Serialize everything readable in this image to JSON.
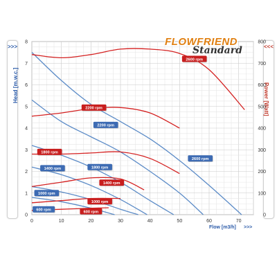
{
  "brand": {
    "name": "FLOWFRIEND",
    "edition": "Standard"
  },
  "left_tab": {
    "label": "Head [m.w.c.]",
    "arrows": ">>>"
  },
  "right_tab": {
    "label": "Power [Watt]",
    "arrows": "<<<"
  },
  "footer": {
    "label": "Flow [m3/h]",
    "arrows": ">>>"
  },
  "colors": {
    "head_curve": "#5b8bc7",
    "power_curve": "#d42020",
    "head_badge": "#3d6bb3",
    "power_badge": "#c81e1e",
    "grid_major": "#c9c9c9",
    "grid_minor": "#e6e6e6"
  },
  "chart_data": {
    "type": "line",
    "xlabel": "Flow [m3/h]",
    "ylabel": "Head [m.w.c.]",
    "y2label": "Power [Watt]",
    "xlim": [
      0,
      75
    ],
    "ylim": [
      0,
      8
    ],
    "y2lim": [
      0,
      800
    ],
    "xticks": [
      "0",
      "10",
      "20",
      "30",
      "40",
      "50",
      "60",
      "70"
    ],
    "yticks": [
      "0",
      "1",
      "2",
      "3",
      "4",
      "5",
      "6",
      "7",
      "8"
    ],
    "y2ticks": [
      "0",
      "100",
      "200",
      "300",
      "400",
      "500",
      "600",
      "700",
      "800"
    ],
    "grid": true,
    "head_series": [
      {
        "name": "600 rpm",
        "x": [
          0,
          10,
          20,
          28
        ],
        "y": [
          0.8,
          0.6,
          0.3,
          0
        ]
      },
      {
        "name": "1000 rpm",
        "x": [
          0,
          10,
          20,
          30,
          36
        ],
        "y": [
          1.3,
          1.05,
          0.7,
          0.25,
          0
        ]
      },
      {
        "name": "1400 rpm",
        "x": [
          0,
          10,
          20,
          30,
          39
        ],
        "y": [
          2.2,
          1.85,
          1.35,
          0.7,
          0
        ]
      },
      {
        "name": "1800 rpm",
        "x": [
          0,
          10,
          20,
          30,
          40,
          48
        ],
        "y": [
          3.2,
          2.75,
          2.2,
          1.5,
          0.65,
          0
        ]
      },
      {
        "name": "2200 rpm",
        "x": [
          0,
          10,
          20,
          30,
          40,
          50,
          58
        ],
        "y": [
          5.3,
          4.3,
          3.6,
          2.9,
          2.0,
          1.0,
          0
        ]
      },
      {
        "name": "2600 rpm",
        "x": [
          0,
          10,
          20,
          30,
          40,
          50,
          60,
          71
        ],
        "y": [
          7.5,
          6.2,
          5.1,
          4.3,
          3.5,
          2.5,
          1.35,
          0
        ]
      }
    ],
    "power_series": [
      {
        "name": "600 rpm",
        "x": [
          0,
          10,
          20,
          26
        ],
        "y": [
          20,
          25,
          30,
          32
        ]
      },
      {
        "name": "1000 rpm",
        "x": [
          0,
          10,
          20,
          30
        ],
        "y": [
          55,
          65,
          75,
          75
        ]
      },
      {
        "name": "1400 rpm",
        "x": [
          0,
          10,
          20,
          30,
          38
        ],
        "y": [
          130,
          150,
          170,
          165,
          115
        ]
      },
      {
        "name": "1800 rpm",
        "x": [
          0,
          10,
          20,
          30,
          40,
          50
        ],
        "y": [
          280,
          280,
          285,
          290,
          260,
          190
        ]
      },
      {
        "name": "2200 rpm",
        "x": [
          0,
          10,
          20,
          30,
          40,
          50
        ],
        "y": [
          455,
          470,
          490,
          495,
          470,
          400
        ]
      },
      {
        "name": "2600 rpm",
        "x": [
          0,
          10,
          20,
          30,
          40,
          50,
          60,
          72
        ],
        "y": [
          740,
          725,
          740,
          765,
          765,
          745,
          670,
          485
        ]
      }
    ],
    "head_labels": [
      {
        "text": "600 rpm",
        "x": 4,
        "y": 0.25
      },
      {
        "text": "1000 rpm",
        "x": 5,
        "y": 1.0
      },
      {
        "text": "1400 rpm",
        "x": 7,
        "y": 2.15
      },
      {
        "text": "1800 rpm",
        "x": 23,
        "y": 2.2
      },
      {
        "text": "2200 rpm",
        "x": 25,
        "y": 4.15
      },
      {
        "text": "2600 rpm",
        "x": 57,
        "y": 2.6
      }
    ],
    "power_labels": [
      {
        "text": "600 rpm",
        "x": 20,
        "y": 16
      },
      {
        "text": "1000 rpm",
        "x": 23,
        "y": 62
      },
      {
        "text": "1400 rpm",
        "x": 27,
        "y": 148
      },
      {
        "text": "1800 rpm",
        "x": 6,
        "y": 290
      },
      {
        "text": "2200 rpm",
        "x": 21,
        "y": 495
      },
      {
        "text": "2600 rpm",
        "x": 55,
        "y": 720
      }
    ]
  }
}
